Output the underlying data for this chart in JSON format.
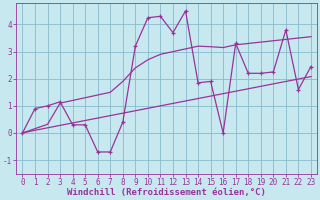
{
  "xlabel": "Windchill (Refroidissement éolien,°C)",
  "background_color": "#c8e8f0",
  "line_color": "#993399",
  "grid_color": "#88bbcc",
  "x_hours": [
    0,
    1,
    2,
    3,
    4,
    5,
    6,
    7,
    8,
    9,
    10,
    11,
    12,
    13,
    14,
    15,
    16,
    17,
    18,
    19,
    20,
    21,
    22,
    23
  ],
  "y_main": [
    0.0,
    0.9,
    1.0,
    1.15,
    0.3,
    0.3,
    -0.7,
    -0.7,
    0.4,
    3.2,
    4.25,
    4.3,
    3.7,
    4.5,
    1.85,
    1.9,
    0.0,
    3.3,
    2.2,
    2.2,
    2.25,
    3.8,
    1.6,
    2.45
  ],
  "y_lower": [
    0.0,
    0.1,
    0.19,
    0.28,
    0.37,
    0.46,
    0.55,
    0.64,
    0.73,
    0.82,
    0.91,
    1.0,
    1.09,
    1.18,
    1.27,
    1.36,
    1.45,
    1.54,
    1.63,
    1.72,
    1.81,
    1.9,
    1.99,
    2.08
  ],
  "y_upper": [
    0.0,
    0.16,
    0.32,
    1.1,
    1.2,
    1.3,
    1.4,
    1.5,
    1.9,
    2.4,
    2.7,
    2.9,
    3.0,
    3.1,
    3.2,
    3.18,
    3.15,
    3.25,
    3.3,
    3.35,
    3.4,
    3.45,
    3.5,
    3.55
  ],
  "ylim": [
    -1.5,
    4.8
  ],
  "xlim": [
    -0.5,
    23.5
  ],
  "yticks": [
    -1,
    0,
    1,
    2,
    3,
    4
  ],
  "xticks": [
    0,
    1,
    2,
    3,
    4,
    5,
    6,
    7,
    8,
    9,
    10,
    11,
    12,
    13,
    14,
    15,
    16,
    17,
    18,
    19,
    20,
    21,
    22,
    23
  ],
  "tick_fontsize": 5.5,
  "xlabel_fontsize": 6.5
}
